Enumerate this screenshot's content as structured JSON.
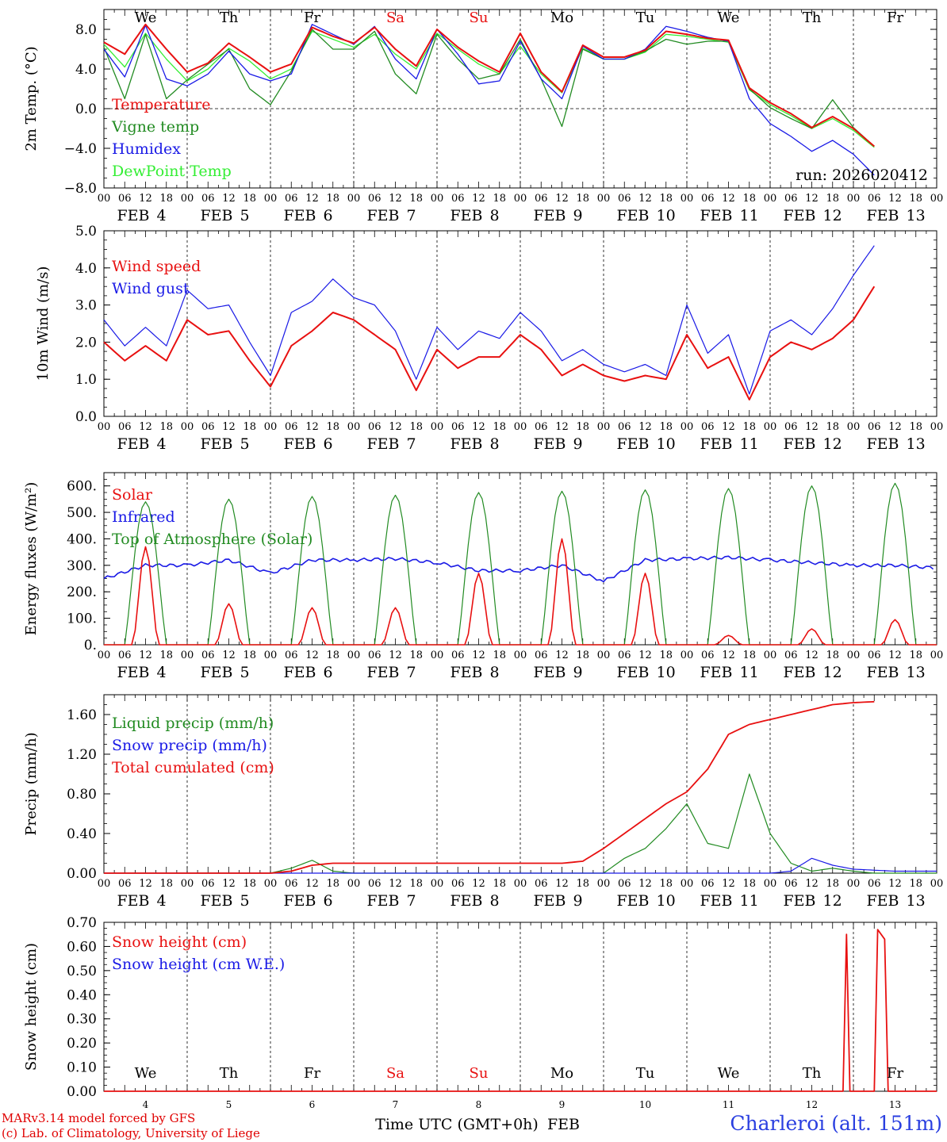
{
  "days": {
    "dates": [
      "4",
      "5",
      "6",
      "7",
      "8",
      "9",
      "10",
      "11",
      "12",
      "13"
    ],
    "month": "FEB",
    "weekdays": [
      "We",
      "Th",
      "Fr",
      "Sa",
      "Su",
      "Mo",
      "Tu",
      "We",
      "Th",
      "Fr"
    ],
    "hour_ticks": [
      "00",
      "06",
      "12",
      "18"
    ],
    "final_tick": "00"
  },
  "colors": {
    "red": "#e81010",
    "green": "#228b22",
    "blue": "#1a1ae6",
    "lightgreen": "#33ee33",
    "weekend": "#e81010",
    "weekday": "#000000"
  },
  "footer": {
    "model": "MARv3.14 model forced by GFS",
    "lab": "(c) Lab. of Climatology, University of Liege",
    "xlabel": "Time UTC (GMT+0h)",
    "month_label": "FEB",
    "station": "Charleroi (alt. 151m)"
  },
  "chart_data": [
    {
      "type": "line",
      "ylabel": "2m Temp. (°C)",
      "ylim": [
        -8,
        10
      ],
      "yticks": [
        "8.0",
        "4.0",
        "0.0",
        "−4.0",
        "−8.0"
      ],
      "ytick_values": [
        8,
        4,
        0,
        -4,
        -8
      ],
      "run_label": "run: 2026020412",
      "x_hours": [
        0,
        6,
        12,
        18,
        24,
        30,
        36,
        42,
        48,
        54,
        60,
        66,
        72,
        78,
        84,
        90,
        96,
        102,
        108,
        114,
        120,
        126,
        132,
        138,
        144,
        150,
        156,
        162,
        168,
        174,
        180,
        186,
        192,
        198,
        204,
        210,
        216,
        222,
        228,
        234,
        240
      ],
      "series": [
        {
          "name": "Temperature",
          "color": "red",
          "values": [
            6.7,
            5.5,
            8.5,
            6.0,
            3.7,
            4.6,
            6.6,
            5.2,
            3.7,
            4.5,
            8.2,
            7.3,
            6.6,
            8.2,
            6.0,
            4.3,
            8.0,
            6.2,
            4.8,
            3.7,
            7.6,
            3.7,
            1.7,
            6.4,
            5.2,
            5.2,
            5.9,
            7.8,
            7.5,
            7.1,
            6.9,
            2.1,
            0.6,
            -0.5,
            -1.9,
            -0.8,
            -2.0,
            -3.8,
            null,
            null,
            null
          ]
        },
        {
          "name": "Vigne temp",
          "color": "green",
          "values": [
            6.2,
            1.0,
            7.5,
            1.0,
            2.9,
            4.5,
            6.0,
            2.0,
            0.4,
            3.8,
            8.0,
            6.0,
            6.0,
            7.8,
            3.5,
            1.5,
            7.5,
            5.0,
            3.0,
            3.5,
            7.0,
            3.0,
            -1.8,
            6.0,
            5.0,
            5.0,
            5.8,
            7.0,
            6.5,
            6.8,
            6.8,
            2.0,
            0.1,
            -1.0,
            -2.0,
            0.9,
            -1.9,
            -3.8,
            null,
            null,
            null
          ]
        },
        {
          "name": "Humidex",
          "color": "blue",
          "values": [
            6.0,
            3.2,
            8.4,
            3.0,
            2.3,
            3.5,
            5.8,
            3.5,
            2.8,
            3.5,
            8.5,
            7.5,
            6.5,
            8.3,
            5.0,
            3.0,
            8.0,
            5.5,
            2.5,
            2.8,
            6.8,
            3.0,
            1.0,
            6.3,
            5.0,
            5.0,
            6.0,
            8.3,
            7.8,
            7.2,
            6.8,
            1.0,
            -1.5,
            -2.8,
            -4.3,
            -3.2,
            -4.6,
            -6.7,
            null,
            null,
            null
          ]
        },
        {
          "name": "DewPoint Temp",
          "color": "lightgreen",
          "values": [
            6.5,
            4.2,
            7.6,
            5.0,
            2.8,
            4.0,
            6.1,
            4.8,
            3.0,
            4.0,
            7.8,
            7.0,
            6.2,
            7.5,
            5.5,
            4.0,
            7.6,
            6.0,
            4.5,
            3.5,
            6.3,
            3.5,
            1.6,
            6.1,
            5.0,
            5.0,
            5.7,
            7.5,
            7.3,
            7.0,
            6.7,
            1.9,
            0.4,
            -0.7,
            -2.0,
            -1.0,
            -2.2,
            -3.9,
            null,
            null,
            null
          ]
        }
      ]
    },
    {
      "type": "line",
      "ylabel": "10m Wind (m/s)",
      "ylim": [
        0,
        5
      ],
      "yticks": [
        "5.0",
        "4.0",
        "3.0",
        "2.0",
        "1.0",
        "0.0"
      ],
      "ytick_values": [
        5,
        4,
        3,
        2,
        1,
        0
      ],
      "series": [
        {
          "name": "Wind speed",
          "color": "red",
          "values": [
            2.0,
            1.5,
            1.9,
            1.5,
            2.6,
            2.2,
            2.3,
            1.5,
            0.8,
            1.9,
            2.3,
            2.8,
            2.6,
            2.2,
            1.8,
            0.7,
            1.8,
            1.3,
            1.6,
            1.6,
            2.2,
            1.8,
            1.1,
            1.4,
            1.1,
            0.95,
            1.1,
            1.0,
            2.2,
            1.3,
            1.6,
            0.45,
            1.6,
            2.0,
            1.8,
            2.1,
            2.6,
            3.5,
            null,
            null,
            null
          ]
        },
        {
          "name": "Wind gust",
          "color": "blue",
          "values": [
            2.6,
            1.9,
            2.4,
            1.9,
            3.4,
            2.9,
            3.0,
            2.0,
            1.1,
            2.8,
            3.1,
            3.7,
            3.2,
            3.0,
            2.3,
            1.0,
            2.4,
            1.8,
            2.3,
            2.1,
            2.8,
            2.3,
            1.5,
            1.8,
            1.4,
            1.2,
            1.4,
            1.1,
            3.0,
            1.7,
            2.2,
            0.6,
            2.3,
            2.6,
            2.2,
            2.9,
            3.8,
            4.6,
            null,
            null,
            null
          ]
        }
      ]
    },
    {
      "type": "line",
      "ylabel": "Energy fluxes (W/m²)",
      "ylim": [
        0,
        650
      ],
      "yticks": [
        "600.",
        "500.",
        "400.",
        "300.",
        "200.",
        "100.",
        "0."
      ],
      "ytick_values": [
        600,
        500,
        400,
        300,
        200,
        100,
        0
      ],
      "series": [
        {
          "name": "Solar",
          "color": "red",
          "peaks": [
            370,
            155,
            140,
            140,
            270,
            400,
            270,
            35,
            60,
            95
          ]
        },
        {
          "name": "Infrared",
          "color": "blue",
          "daily_values": [
            [
              250,
              300,
              250
            ],
            [
              300,
              320,
              260
            ],
            [
              270,
              320,
              330
            ],
            [
              320,
              325,
              320
            ],
            [
              310,
              280,
              300
            ],
            [
              280,
              300,
              255
            ],
            [
              240,
              320,
              320
            ],
            [
              325,
              330,
              330
            ],
            [
              320,
              310,
              300
            ],
            [
              300,
              300,
              290
            ]
          ]
        },
        {
          "name": "Top of Atmosphere (Solar)",
          "color": "green",
          "peaks": [
            540,
            550,
            560,
            565,
            575,
            580,
            585,
            590,
            600,
            610
          ]
        }
      ]
    },
    {
      "type": "line",
      "ylabel": "Precip (mm/h)",
      "ylim": [
        0,
        1.8
      ],
      "yticks": [
        "1.60",
        "1.20",
        "0.80",
        "0.40",
        "0.00"
      ],
      "ytick_values": [
        1.6,
        1.2,
        0.8,
        0.4,
        0.0
      ],
      "series": [
        {
          "name": "Liquid precip (mm/h)",
          "color": "green",
          "values": [
            0,
            0,
            0,
            0,
            0,
            0,
            0,
            0,
            0,
            0.05,
            0.13,
            0.02,
            0,
            0,
            0,
            0,
            0,
            0,
            0,
            0,
            0,
            0,
            0,
            0,
            0,
            0.15,
            0.25,
            0.45,
            0.7,
            0.3,
            0.25,
            1.0,
            0.4,
            0.1,
            0.02,
            0.05,
            0.02,
            0,
            0,
            0,
            0
          ]
        },
        {
          "name": "Snow precip (mm/h)",
          "color": "blue",
          "values": [
            0,
            0,
            0,
            0,
            0,
            0,
            0,
            0,
            0,
            0,
            0,
            0,
            0,
            0,
            0,
            0,
            0,
            0,
            0,
            0,
            0,
            0,
            0,
            0,
            0,
            0,
            0,
            0,
            0,
            0,
            0,
            0,
            0,
            0.02,
            0.15,
            0.08,
            0.04,
            0.03,
            0.02,
            0.02,
            0.02
          ]
        },
        {
          "name": "Total cumulated (cm)",
          "color": "red",
          "values": [
            0,
            0,
            0,
            0,
            0,
            0,
            0,
            0,
            0,
            0.02,
            0.08,
            0.1,
            0.1,
            0.1,
            0.1,
            0.1,
            0.1,
            0.1,
            0.1,
            0.1,
            0.1,
            0.1,
            0.1,
            0.12,
            0.25,
            0.4,
            0.55,
            0.7,
            0.82,
            1.05,
            1.4,
            1.5,
            1.55,
            1.6,
            1.65,
            1.7,
            1.72,
            1.73,
            null,
            null,
            null
          ]
        }
      ]
    },
    {
      "type": "line",
      "ylabel": "Snow height (cm)",
      "ylim": [
        0,
        0.7
      ],
      "yticks": [
        "0.70",
        "0.60",
        "0.50",
        "0.40",
        "0.30",
        "0.20",
        "0.10",
        "0.00"
      ],
      "ytick_values": [
        0.7,
        0.6,
        0.5,
        0.4,
        0.3,
        0.2,
        0.1,
        0.0
      ],
      "series": [
        {
          "name": "Snow height (cm)",
          "color": "red",
          "events": [
            {
              "start_h": 213,
              "peak_h": 214,
              "end_h": 215,
              "value": 0.65
            },
            {
              "start_h": 222,
              "peak_h": 223,
              "end_h": 226,
              "value": 0.67,
              "end_value": 0.63
            }
          ]
        },
        {
          "name": "Snow height (cm W.E.)",
          "color": "blue",
          "values": []
        }
      ]
    }
  ]
}
